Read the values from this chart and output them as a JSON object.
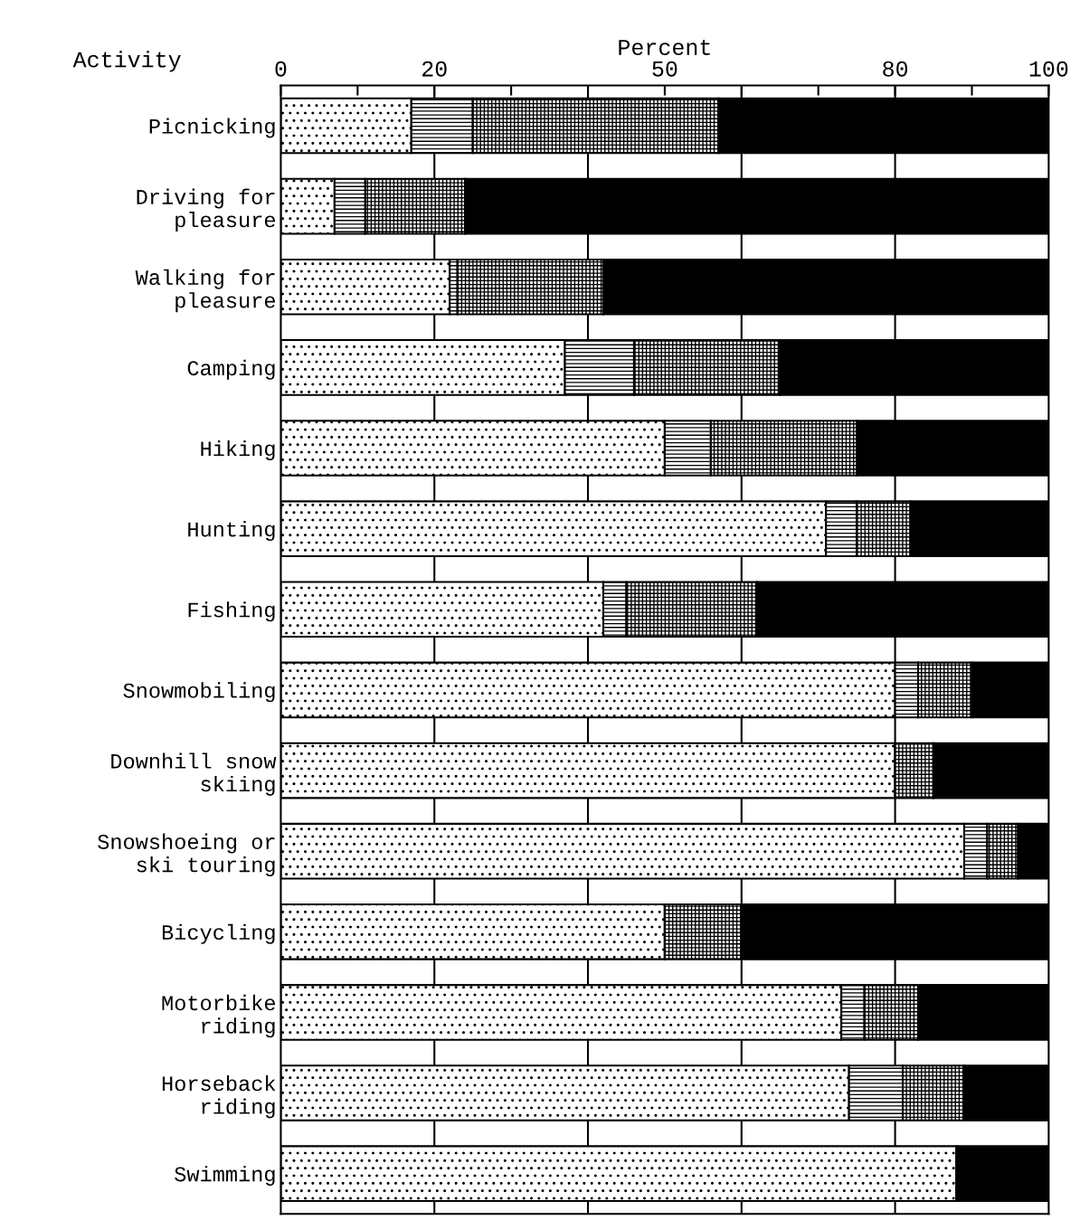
{
  "chart_data": {
    "type": "bar",
    "orientation": "horizontal",
    "stacked": true,
    "xlabel": "Percent",
    "ylabel": "Activity",
    "categories": [
      "Picnicking",
      "Driving for\npleasure",
      "Walking for\npleasure",
      "Camping",
      "Hiking",
      "Hunting",
      "Fishing",
      "Snowmobiling",
      "Downhill snow\nskiing",
      "Snowshoeing or\nski touring",
      "Bicycling",
      "Motorbike\nriding",
      "Horseback\nriding",
      "Swimming"
    ],
    "series": [
      {
        "color": "#000000",
        "values": [
          17,
          7,
          22,
          37,
          50,
          71,
          42,
          80,
          80,
          89,
          50,
          73,
          74,
          88
        ]
      },
      {
        "color": "#000000",
        "values": [
          8,
          4,
          1,
          9,
          6,
          4,
          3,
          3,
          0,
          3,
          0,
          3,
          7,
          0
        ]
      },
      {
        "color": "#000000",
        "values": [
          32,
          13,
          19,
          19,
          19,
          7,
          17,
          7,
          5,
          4,
          10,
          7,
          8,
          0
        ]
      },
      {
        "color": "#000000",
        "values": [
          43,
          76,
          58,
          35,
          25,
          18,
          38,
          10,
          15,
          4,
          40,
          17,
          11,
          12
        ]
      }
    ],
    "xlim": [
      0,
      100
    ],
    "xticks": [
      0,
      {
        "value": 10,
        "label": null
      },
      20,
      {
        "value": 30,
        "label": null
      },
      {
        "value": 40,
        "label": null
      },
      50,
      {
        "value": 60,
        "label": null
      },
      {
        "value": 70,
        "label": null
      },
      80,
      {
        "value": 90,
        "label": null
      },
      100
    ],
    "ref_lines": [
      {
        "axis": "x",
        "value": 20,
        "color": "#000000"
      },
      {
        "axis": "x",
        "value": 40,
        "color": "#000000"
      },
      {
        "axis": "x",
        "value": 60,
        "color": "#000000"
      },
      {
        "axis": "x",
        "value": 80,
        "color": "#000000"
      }
    ]
  }
}
